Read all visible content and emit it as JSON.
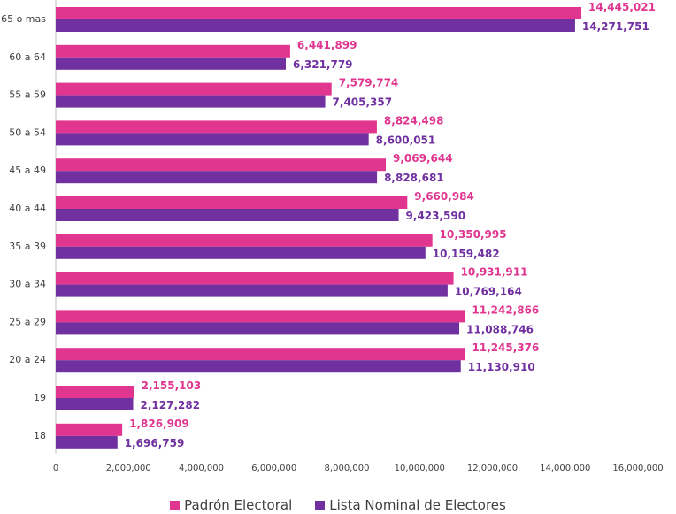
{
  "chart_data": {
    "type": "bar",
    "orientation": "horizontal",
    "categories": [
      "65 o mas",
      "60 a 64",
      "55 a 59",
      "50 a 54",
      "45 a 49",
      "40 a 44",
      "35 a 39",
      "30 a 34",
      "25 a 29",
      "20 a 24",
      "19",
      "18"
    ],
    "series": [
      {
        "name": "Padrón Electoral",
        "color": "#e0368f",
        "values": [
          14445021,
          6441899,
          7579774,
          8824498,
          9069644,
          9660984,
          10350995,
          10931911,
          11242866,
          11245376,
          2155103,
          1826909
        ],
        "labels": [
          "14,445,021",
          "6,441,899",
          "7,579,774",
          "8,824,498",
          "9,069,644",
          "9,660,984",
          "10,350,995",
          "10,931,911",
          "11,242,866",
          "11,245,376",
          "2,155,103",
          "1,826,909"
        ]
      },
      {
        "name": "Lista Nominal de Electores",
        "color": "#7030a0",
        "values": [
          14271751,
          6321779,
          7405357,
          8600051,
          8828681,
          9423590,
          10159482,
          10769164,
          11088746,
          11130910,
          2127282,
          1696759
        ],
        "labels": [
          "14,271,751",
          "6,321,779",
          "7,405,357",
          "8,600,051",
          "8,828,681",
          "9,423,590",
          "10,159,482",
          "10,769,164",
          "11,088,746",
          "11,130,910",
          "2,127,282",
          "1,696,759"
        ]
      }
    ],
    "xlim": [
      0,
      16000000
    ],
    "xticks": [
      0,
      2000000,
      4000000,
      6000000,
      8000000,
      10000000,
      12000000,
      14000000,
      16000000
    ],
    "xtick_labels": [
      "0",
      "2,000,000",
      "4,000,000",
      "6,000,000",
      "8,000,000",
      "10,000,000",
      "12,000,000",
      "14,000,000",
      "16,000,000"
    ],
    "grid": false,
    "legend_position": "bottom",
    "title": "",
    "xlabel": "",
    "ylabel": ""
  }
}
